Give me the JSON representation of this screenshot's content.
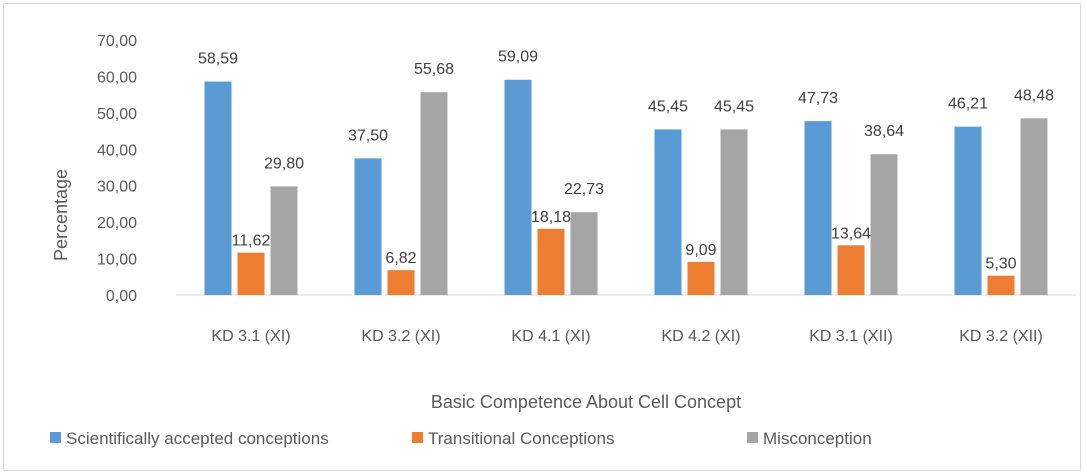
{
  "chart_data": {
    "type": "bar",
    "title": "",
    "xlabel": "Basic Competence About Cell Concept",
    "ylabel": "Percentage",
    "ylim": [
      0,
      70
    ],
    "y_ticks": [
      "0,00",
      "10,00",
      "20,00",
      "30,00",
      "40,00",
      "50,00",
      "60,00",
      "70,00"
    ],
    "categories": [
      "KD 3.1 (XI)",
      "KD 3.2 (XI)",
      "KD 4.1 (XI)",
      "KD 4.2 (XI)",
      "KD 3.1 (XII)",
      "KD 3.2 (XII)"
    ],
    "series": [
      {
        "name": "Scientifically accepted conceptions",
        "color": "#5b9bd5",
        "values": [
          58.59,
          37.5,
          59.09,
          45.45,
          47.73,
          46.21
        ],
        "labels": [
          "58,59",
          "37,50",
          "59,09",
          "45,45",
          "47,73",
          "46,21"
        ]
      },
      {
        "name": "Transitional Conceptions",
        "color": "#ed7d31",
        "values": [
          11.62,
          6.82,
          18.18,
          9.09,
          13.64,
          5.3
        ],
        "labels": [
          "11,62",
          "6,82",
          "18,18",
          "9,09",
          "13,64",
          "5,30"
        ]
      },
      {
        "name": "Misconception",
        "color": "#a5a5a5",
        "values": [
          29.8,
          55.68,
          22.73,
          45.45,
          38.64,
          48.48
        ],
        "labels": [
          "29,80",
          "55,68",
          "22,73",
          "45,45",
          "38,64",
          "48,48"
        ]
      }
    ],
    "grid": false,
    "legend_position": "bottom"
  }
}
